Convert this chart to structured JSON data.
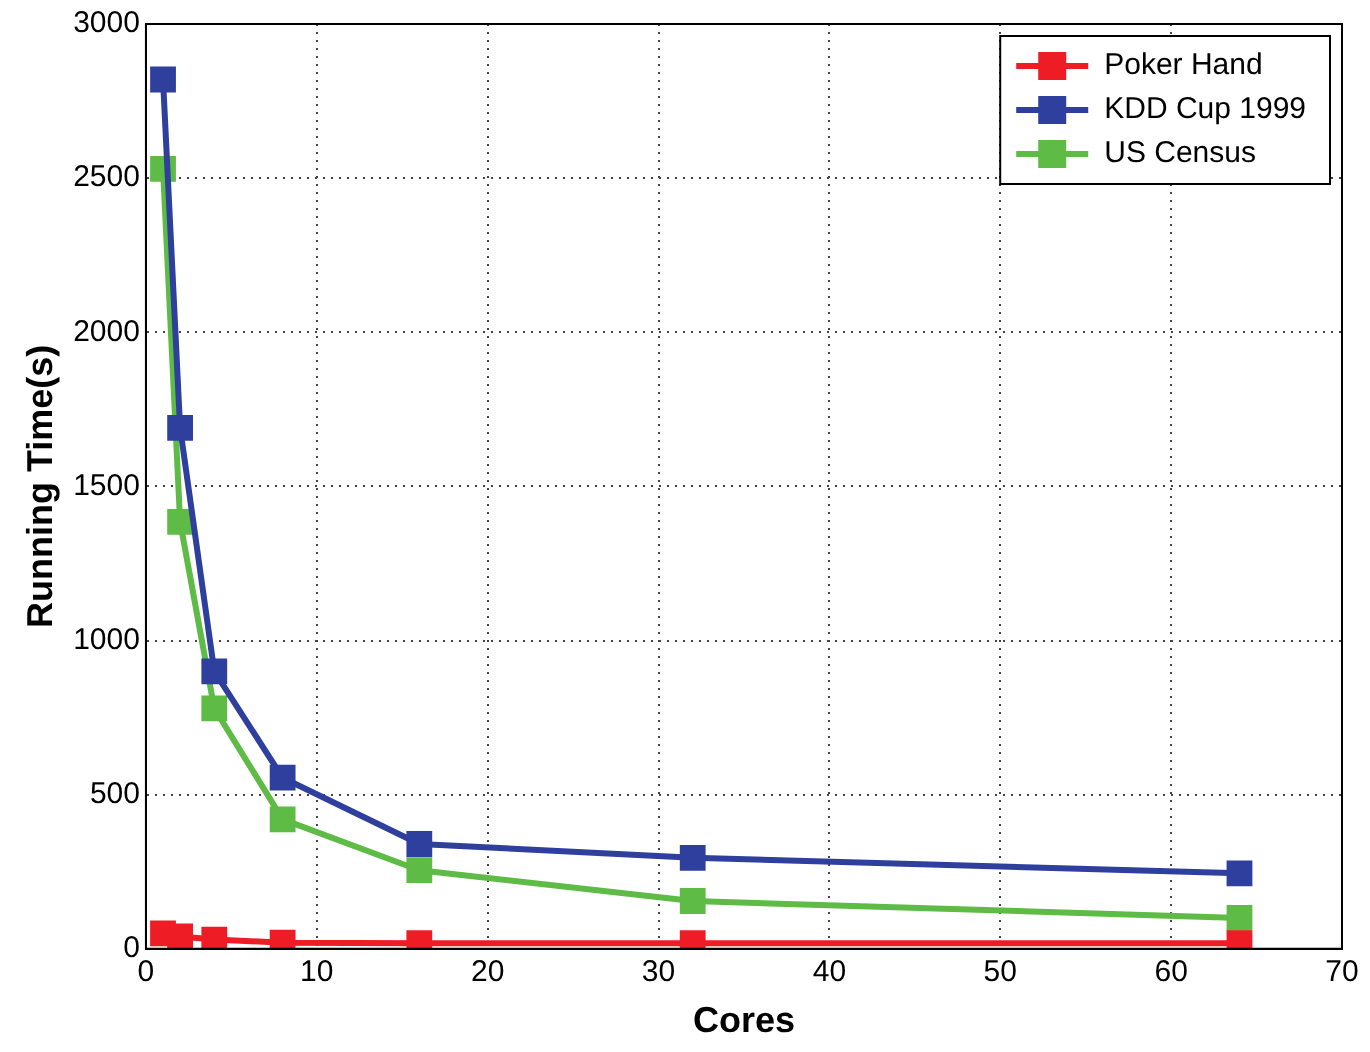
{
  "chart_data": {
    "type": "line",
    "xlabel": "Cores",
    "ylabel": "Running Time(s)",
    "x": [
      1,
      2,
      4,
      8,
      16,
      32,
      64
    ],
    "series": [
      {
        "name": "Poker Hand",
        "color": "#ee1c25",
        "values": [
          50,
          40,
          30,
          20,
          18,
          18,
          18
        ]
      },
      {
        "name": "KDD Cup 1999",
        "color": "#2e3f9e",
        "values": [
          2820,
          1690,
          900,
          555,
          340,
          295,
          245
        ]
      },
      {
        "name": "US Census",
        "color": "#5dbb46",
        "values": [
          2530,
          1385,
          780,
          420,
          255,
          155,
          100
        ]
      }
    ],
    "xlim": [
      0,
      70
    ],
    "xticks": [
      0,
      10,
      20,
      30,
      40,
      50,
      60,
      70
    ],
    "ylim": [
      0,
      3000
    ],
    "yticks": [
      0,
      500,
      1000,
      1500,
      2000,
      2500,
      3000
    ],
    "grid": true,
    "legend": "top right",
    "marker": "square",
    "line_style": "solid"
  }
}
